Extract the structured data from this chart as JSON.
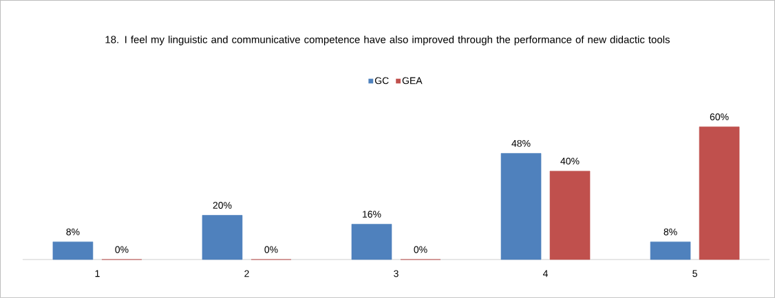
{
  "chart_data": {
    "type": "bar",
    "title": "18. I feel my linguistic and communicative competence have also improved through the performance of new didactic tools",
    "categories": [
      "1",
      "2",
      "3",
      "4",
      "5"
    ],
    "series": [
      {
        "name": "GC",
        "color": "#4f81bd",
        "values": [
          8,
          20,
          16,
          48,
          8
        ],
        "value_labels": [
          "8%",
          "20%",
          "16%",
          "48%",
          "8%"
        ]
      },
      {
        "name": "GEA",
        "color": "#c0504d",
        "values": [
          0,
          0,
          0,
          40,
          60
        ],
        "value_labels": [
          "0%",
          "0%",
          "0%",
          "40%",
          "60%"
        ]
      }
    ],
    "legend": "top",
    "tick_labels": "x"
  }
}
